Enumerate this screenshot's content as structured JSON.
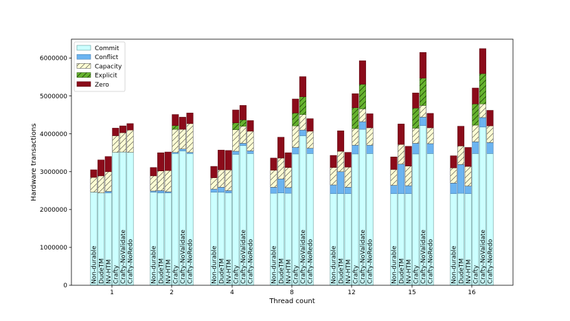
{
  "chart_data": {
    "type": "bar",
    "stacked": true,
    "title": "",
    "xlabel": "Thread count",
    "ylabel": "Hardware transactions",
    "ylim": [
      0,
      6500000
    ],
    "yticks": [
      0,
      1000000,
      2000000,
      3000000,
      4000000,
      5000000,
      6000000
    ],
    "ytick_labels": [
      "0",
      "1000000",
      "2000000",
      "3000000",
      "4000000",
      "5000000",
      "6000000"
    ],
    "categories": [
      "1",
      "2",
      "4",
      "8",
      "12",
      "15",
      "16"
    ],
    "variants": [
      "Non-durable",
      "DudeTM",
      "NV-HTM",
      "Crafty",
      "Crafty-NoValidate",
      "Crafty-NoRedo"
    ],
    "legend_position": "top-left",
    "segments": [
      {
        "name": "Commit",
        "color": "#ccffff",
        "edge": "#5a9a9a",
        "hatch": "none"
      },
      {
        "name": "Conflict",
        "color": "#6cb4f0",
        "edge": "#4a7fb0",
        "hatch": "none"
      },
      {
        "name": "Capacity",
        "color": "#ffffd4",
        "edge": "#555555",
        "hatch": "diag"
      },
      {
        "name": "Explicit",
        "color": "#66b32e",
        "edge": "#2f5e12",
        "hatch": "diag-dark"
      },
      {
        "name": "Zero",
        "color": "#8b0b1a",
        "edge": "#5a0610",
        "hatch": "none"
      }
    ],
    "groups": [
      {
        "threads": "1",
        "bars": [
          {
            "variant": "Non-durable",
            "values": [
              2460000,
              0,
              390000,
              0,
              200000
            ]
          },
          {
            "variant": "DudeTM",
            "values": [
              2440000,
              0,
              450000,
              0,
              420000
            ]
          },
          {
            "variant": "NV-HTM",
            "values": [
              2440000,
              40000,
              520000,
              0,
              400000
            ]
          },
          {
            "variant": "Crafty",
            "values": [
              3510000,
              0,
              440000,
              0,
              200000
            ]
          },
          {
            "variant": "Crafty-NoValidate",
            "values": [
              3520000,
              0,
              510000,
              0,
              180000
            ]
          },
          {
            "variant": "Crafty-NoRedo",
            "values": [
              3510000,
              0,
              590000,
              0,
              170000
            ]
          }
        ]
      },
      {
        "threads": "2",
        "bars": [
          {
            "variant": "Non-durable",
            "values": [
              2460000,
              30000,
              400000,
              0,
              220000
            ]
          },
          {
            "variant": "DudeTM",
            "values": [
              2440000,
              60000,
              520000,
              0,
              480000
            ]
          },
          {
            "variant": "NV-HTM",
            "values": [
              2440000,
              30000,
              560000,
              0,
              490000
            ]
          },
          {
            "variant": "Crafty",
            "values": [
              3480000,
              30000,
              610000,
              100000,
              290000
            ]
          },
          {
            "variant": "Crafty-NoValidate",
            "values": [
              3550000,
              50000,
              520000,
              0,
              320000
            ]
          },
          {
            "variant": "Crafty-NoRedo",
            "values": [
              3480000,
              30000,
              760000,
              0,
              280000
            ]
          }
        ]
      },
      {
        "threads": "4",
        "bars": [
          {
            "variant": "Non-durable",
            "values": [
              2460000,
              80000,
              300000,
              0,
              300000
            ]
          },
          {
            "variant": "DudeTM",
            "values": [
              2460000,
              130000,
              460000,
              0,
              520000
            ]
          },
          {
            "variant": "NV-HTM",
            "values": [
              2440000,
              60000,
              550000,
              0,
              510000
            ]
          },
          {
            "variant": "Crafty",
            "values": [
              3460000,
              80000,
              570000,
              180000,
              340000
            ]
          },
          {
            "variant": "Crafty-NoValidate",
            "values": [
              3690000,
              60000,
              450000,
              170000,
              380000
            ]
          },
          {
            "variant": "Crafty-NoRedo",
            "values": [
              3480000,
              70000,
              520000,
              0,
              280000
            ]
          }
        ]
      },
      {
        "threads": "8",
        "bars": [
          {
            "variant": "Non-durable",
            "values": [
              2430000,
              160000,
              450000,
              0,
              320000
            ]
          },
          {
            "variant": "DudeTM",
            "values": [
              2440000,
              370000,
              550000,
              0,
              550000
            ]
          },
          {
            "variant": "NV-HTM",
            "values": [
              2430000,
              150000,
              530000,
              0,
              390000
            ]
          },
          {
            "variant": "Crafty",
            "values": [
              3470000,
              170000,
              570000,
              340000,
              370000
            ]
          },
          {
            "variant": "Crafty-NoValidate",
            "values": [
              3950000,
              150000,
              410000,
              470000,
              530000
            ]
          },
          {
            "variant": "Crafty-NoRedo",
            "values": [
              3480000,
              140000,
              450000,
              0,
              330000
            ]
          }
        ]
      },
      {
        "threads": "12",
        "bars": [
          {
            "variant": "Non-durable",
            "values": [
              2420000,
              230000,
              460000,
              0,
              320000
            ]
          },
          {
            "variant": "DudeTM",
            "values": [
              2420000,
              580000,
              540000,
              0,
              540000
            ]
          },
          {
            "variant": "NV-HTM",
            "values": [
              2420000,
              170000,
              530000,
              0,
              390000
            ]
          },
          {
            "variant": "Crafty",
            "values": [
              3470000,
              230000,
              440000,
              550000,
              370000
            ]
          },
          {
            "variant": "Crafty-NoValidate",
            "values": [
              4120000,
              200000,
              340000,
              650000,
              620000
            ]
          },
          {
            "variant": "Crafty-NoRedo",
            "values": [
              3480000,
              220000,
              460000,
              0,
              370000
            ]
          }
        ]
      },
      {
        "threads": "15",
        "bars": [
          {
            "variant": "Non-durable",
            "values": [
              2420000,
              220000,
              420000,
              0,
              330000
            ]
          },
          {
            "variant": "DudeTM",
            "values": [
              2420000,
              780000,
              520000,
              0,
              540000
            ]
          },
          {
            "variant": "NV-HTM",
            "values": [
              2420000,
              210000,
              520000,
              0,
              520000
            ]
          },
          {
            "variant": "Crafty",
            "values": [
              3470000,
              280000,
              400000,
              530000,
              400000
            ]
          },
          {
            "variant": "Crafty-NoValidate",
            "values": [
              4220000,
              220000,
              310000,
              720000,
              680000
            ]
          },
          {
            "variant": "Crafty-NoRedo",
            "values": [
              3480000,
              260000,
              420000,
              0,
              380000
            ]
          }
        ]
      },
      {
        "threads": "16",
        "bars": [
          {
            "variant": "Non-durable",
            "values": [
              2420000,
              280000,
              400000,
              0,
              320000
            ]
          },
          {
            "variant": "DudeTM",
            "values": [
              2430000,
              760000,
              490000,
              0,
              520000
            ]
          },
          {
            "variant": "NV-HTM",
            "values": [
              2420000,
              200000,
              520000,
              0,
              500000
            ]
          },
          {
            "variant": "Crafty",
            "values": [
              3480000,
              310000,
              440000,
              560000,
              420000
            ]
          },
          {
            "variant": "Crafty-NoValidate",
            "values": [
              4180000,
              250000,
              360000,
              800000,
              660000
            ]
          },
          {
            "variant": "Crafty-NoRedo",
            "values": [
              3480000,
              290000,
              440000,
              0,
              410000
            ]
          }
        ]
      }
    ]
  }
}
